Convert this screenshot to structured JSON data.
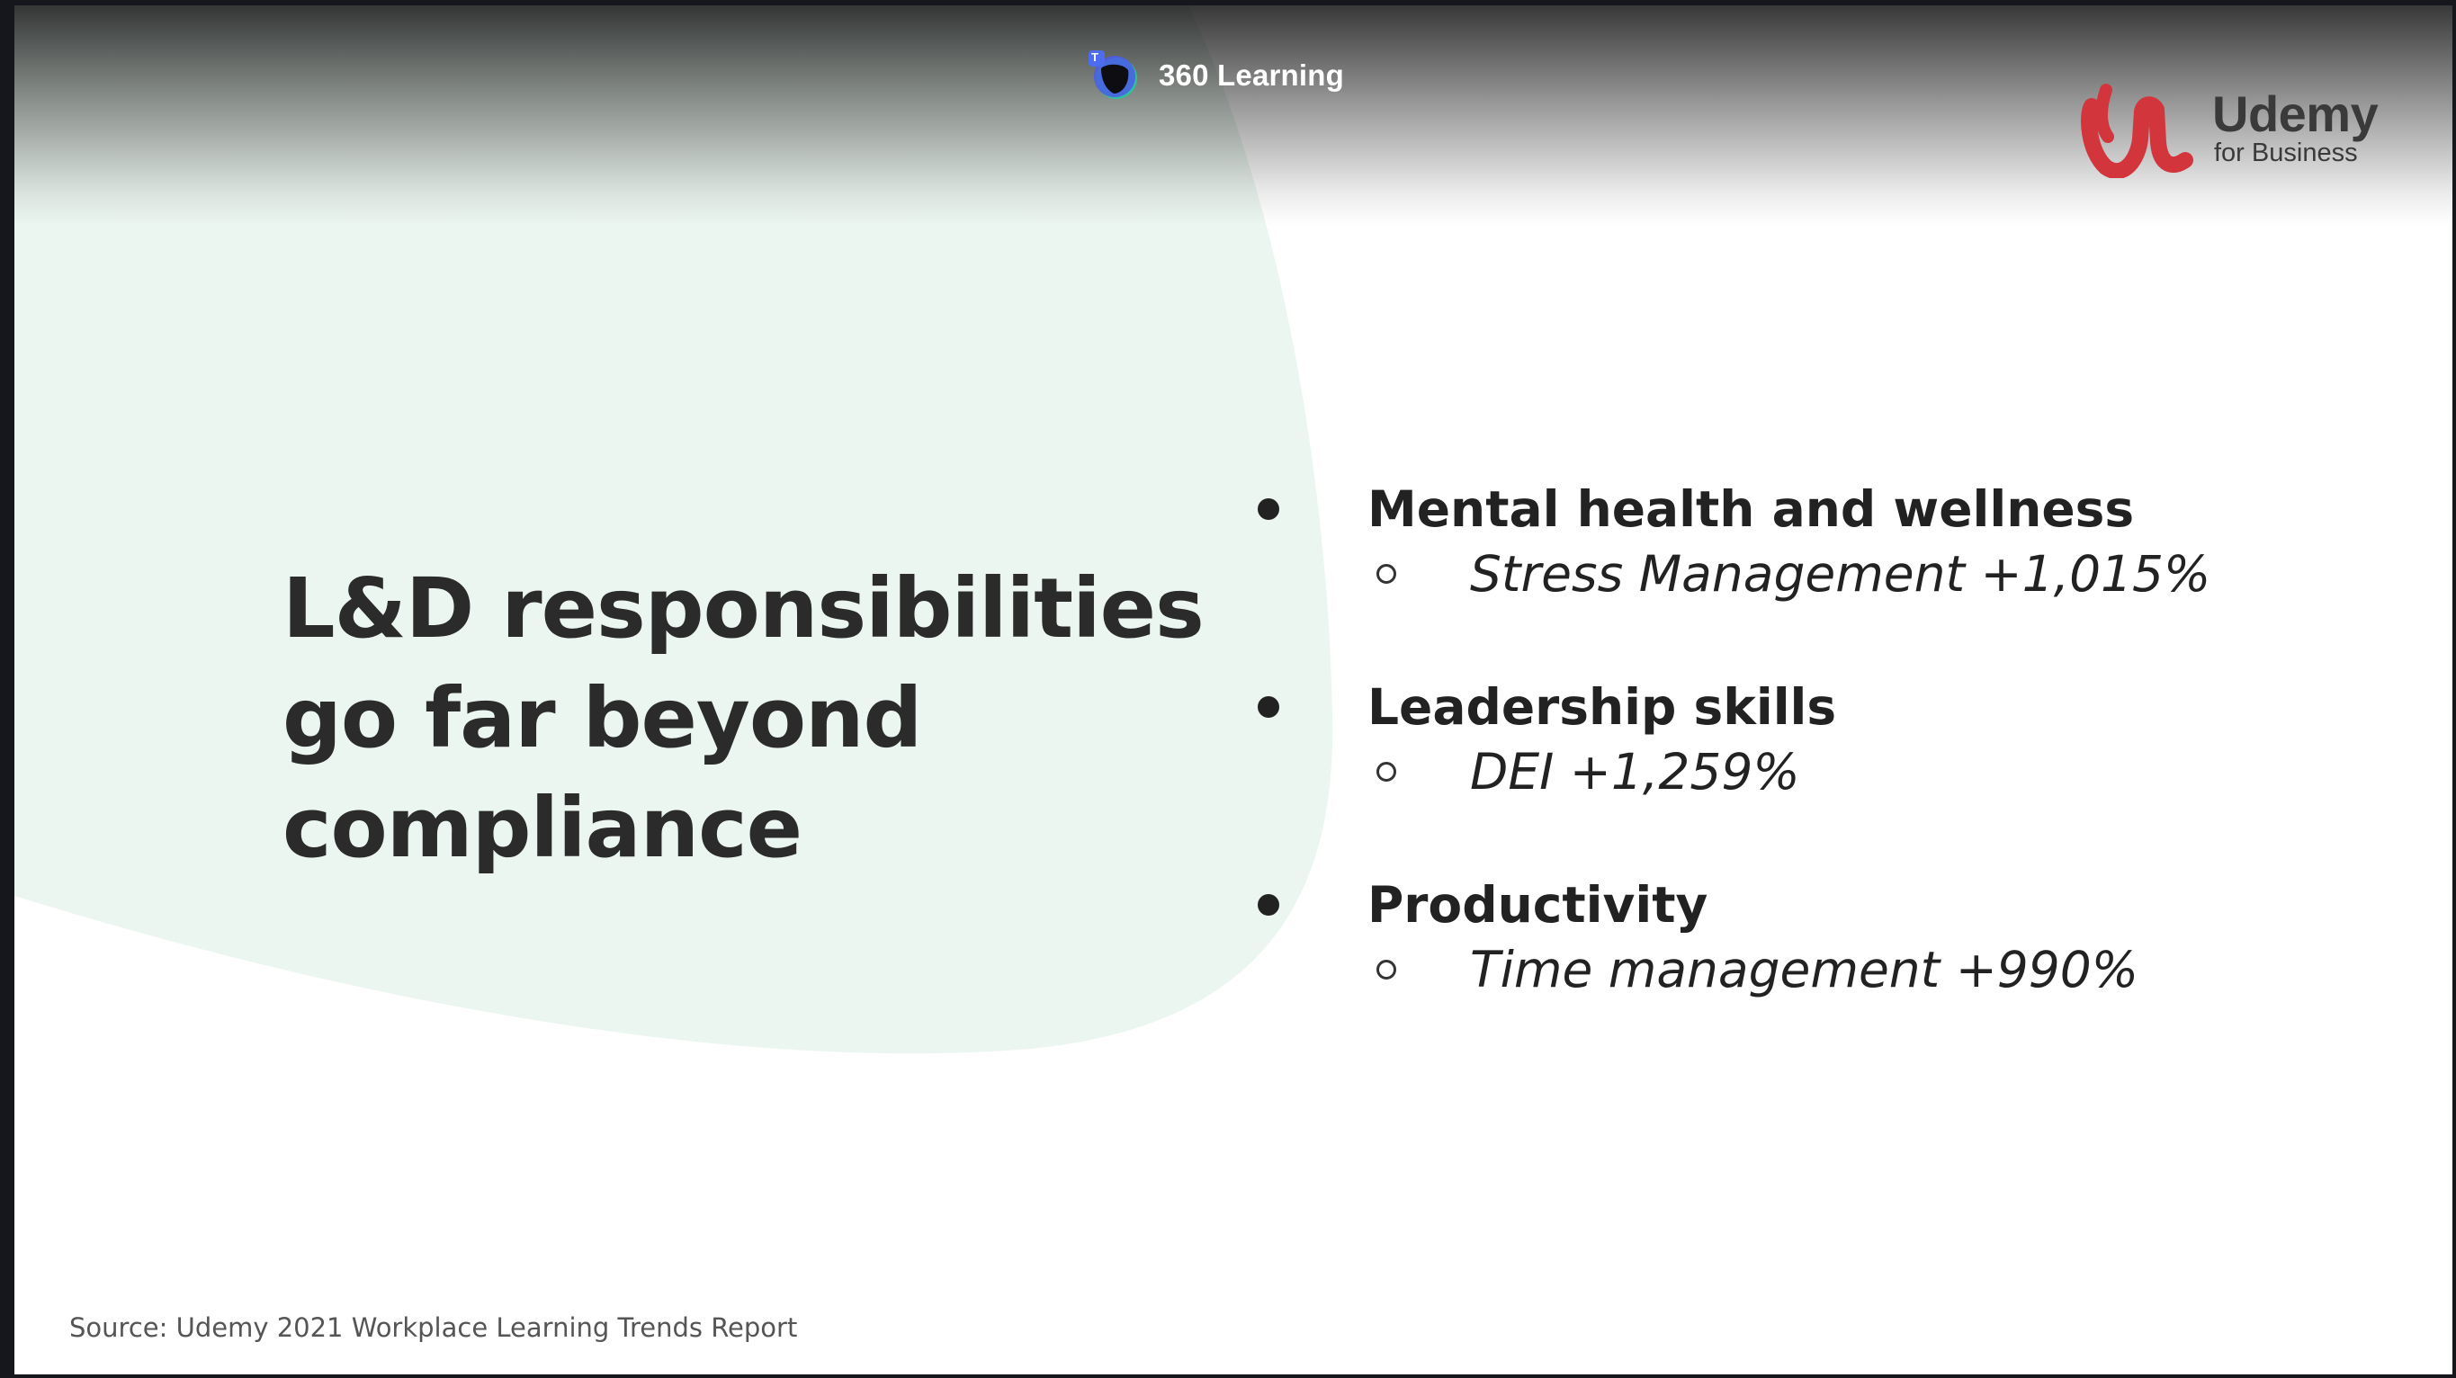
{
  "meeting": {
    "name": "360 Learning",
    "badge": "T"
  },
  "brand": {
    "name": "Udemy",
    "sub": "for Business"
  },
  "slide": {
    "headline": [
      "L&D responsibilities",
      "go far beyond",
      "compliance"
    ],
    "bullets": [
      {
        "label": "Mental health and wellness",
        "sub": "Stress Management +1,015%"
      },
      {
        "label": "Leadership skills",
        "sub": "DEI +1,259%"
      },
      {
        "label": "Productivity",
        "sub": "Time management +990%"
      }
    ],
    "source": "Source: Udemy 2021 Workplace Learning Trends Report"
  },
  "colors": {
    "accent_blob": "#ecf6f0",
    "brand_red": "#d2363c",
    "text": "#2b2b2b"
  }
}
